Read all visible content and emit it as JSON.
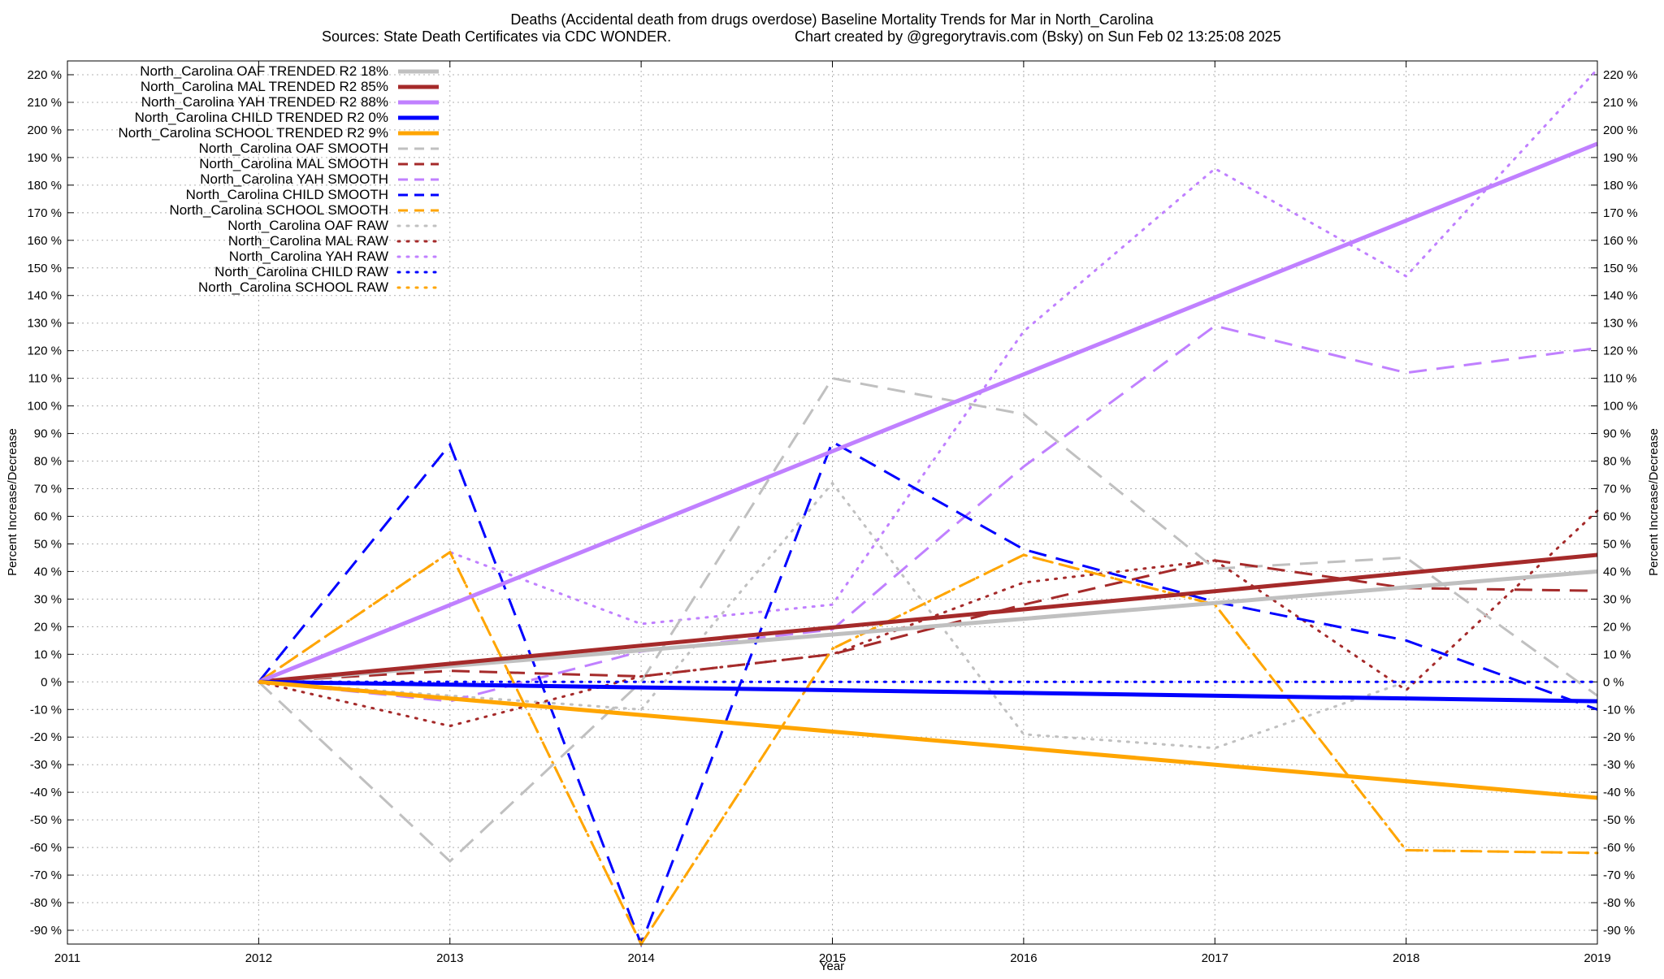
{
  "chart_data": {
    "type": "line",
    "title": "Deaths (Accidental death from drugs overdose)  Baseline Mortality Trends for Mar in North_Carolina",
    "subtitle_left": "Sources: State Death Certificates via CDC WONDER.",
    "subtitle_right": "Chart created by @gregorytravis.com (Bsky) on Sun Feb 02 13:25:08 2025",
    "xlabel": "Year",
    "ylabel_left": "Percent Increase/Decrease",
    "ylabel_right": "Percent Increase/Decrease",
    "xlim": [
      2011,
      2019
    ],
    "ylim": [
      -95,
      225
    ],
    "x_ticks": [
      "2011",
      "2012",
      "2013",
      "2014",
      "2015",
      "2016",
      "2017",
      "2018",
      "2019"
    ],
    "y_ticks": [
      "220 %",
      "210 %",
      "200 %",
      "190 %",
      "180 %",
      "170 %",
      "160 %",
      "150 %",
      "140 %",
      "130 %",
      "120 %",
      "110 %",
      "100 %",
      "90 %",
      "80 %",
      "70 %",
      "60 %",
      "50 %",
      "40 %",
      "30 %",
      "20 %",
      "10 %",
      "0 %",
      "-10 %",
      "-20 %",
      "-30 %",
      "-40 %",
      "-50 %",
      "-60 %",
      "-70 %",
      "-80 %",
      "-90 %"
    ],
    "grid": true,
    "legend_position": "top-left",
    "series": [
      {
        "name": "North_Carolina OAF TRENDED R2  18%",
        "style": "solid",
        "color": "#c0c0c0",
        "x": [
          2012,
          2019
        ],
        "y": [
          0,
          40
        ]
      },
      {
        "name": "North_Carolina MAL TRENDED R2  85%",
        "style": "solid",
        "color": "#a52a2a",
        "x": [
          2012,
          2019
        ],
        "y": [
          0,
          46
        ]
      },
      {
        "name": "North_Carolina YAH TRENDED R2  88%",
        "style": "solid",
        "color": "#c080ff",
        "x": [
          2012,
          2019
        ],
        "y": [
          0,
          195
        ]
      },
      {
        "name": "North_Carolina CHILD TRENDED R2   0%",
        "style": "solid",
        "color": "#0000ff",
        "x": [
          2012,
          2019
        ],
        "y": [
          0,
          -7
        ]
      },
      {
        "name": "North_Carolina SCHOOL TRENDED R2   9%",
        "style": "solid",
        "color": "#ffa500",
        "x": [
          2012,
          2019
        ],
        "y": [
          0,
          -42
        ]
      },
      {
        "name": "North_Carolina OAF SMOOTH",
        "style": "dashed",
        "color": "#c0c0c0",
        "x": [
          2012,
          2013,
          2014,
          2015,
          2016,
          2017,
          2018,
          2019
        ],
        "y": [
          0,
          -65,
          0,
          110,
          97,
          41,
          45,
          -5
        ]
      },
      {
        "name": "North_Carolina MAL SMOOTH",
        "style": "dashed",
        "color": "#a52a2a",
        "x": [
          2012,
          2013,
          2014,
          2015,
          2016,
          2017,
          2018,
          2019
        ],
        "y": [
          0,
          4,
          2,
          10,
          28,
          44,
          34,
          33
        ]
      },
      {
        "name": "North_Carolina YAH SMOOTH",
        "style": "dashed",
        "color": "#c080ff",
        "x": [
          2012,
          2013,
          2014,
          2015,
          2016,
          2017,
          2018,
          2019
        ],
        "y": [
          0,
          -7,
          11,
          19,
          78,
          129,
          112,
          121
        ]
      },
      {
        "name": "North_Carolina CHILD SMOOTH",
        "style": "dashed",
        "color": "#0000ff",
        "x": [
          2012,
          2013,
          2014,
          2015,
          2016,
          2017,
          2018,
          2019
        ],
        "y": [
          0,
          86,
          -95,
          87,
          48,
          29,
          15,
          -10
        ]
      },
      {
        "name": "North_Carolina SCHOOL SMOOTH",
        "style": "dashed",
        "color": "#ffa500",
        "x": [
          2012,
          2013,
          2014,
          2015,
          2016,
          2017,
          2018,
          2019
        ],
        "y": [
          0,
          47,
          -95,
          12,
          46,
          28,
          -61,
          -62
        ]
      },
      {
        "name": "North_Carolina OAF RAW",
        "style": "dotted",
        "color": "#c0c0c0",
        "x": [
          2012,
          2013,
          2014,
          2015,
          2016,
          2017,
          2018,
          2019
        ],
        "y": [
          0,
          -5,
          -10,
          72,
          -19,
          -24,
          0,
          0
        ]
      },
      {
        "name": "North_Carolina MAL RAW",
        "style": "dotted",
        "color": "#a52a2a",
        "x": [
          2012,
          2013,
          2014,
          2015,
          2016,
          2017,
          2018,
          2019
        ],
        "y": [
          0,
          -16,
          2,
          10,
          36,
          44,
          -3,
          62
        ]
      },
      {
        "name": "North_Carolina YAH RAW",
        "style": "dotted",
        "color": "#c080ff",
        "x": [
          2012,
          2013,
          2014,
          2015,
          2016,
          2017,
          2018,
          2019
        ],
        "y": [
          0,
          47,
          21,
          28,
          127,
          186,
          147,
          222
        ]
      },
      {
        "name": "North_Carolina CHILD RAW",
        "style": "dotted",
        "color": "#0000ff",
        "x": [
          2012,
          2013,
          2014,
          2015,
          2016,
          2017,
          2018,
          2019
        ],
        "y": [
          0,
          0,
          0,
          0,
          0,
          0,
          0,
          0
        ]
      },
      {
        "name": "North_Carolina SCHOOL RAW",
        "style": "dotted",
        "color": "#ffa500",
        "x": [
          2012,
          2013,
          2014,
          2015,
          2016,
          2017,
          2018,
          2019
        ],
        "y": [
          0,
          47,
          -95,
          12,
          46,
          28,
          -61,
          -62
        ]
      }
    ]
  }
}
